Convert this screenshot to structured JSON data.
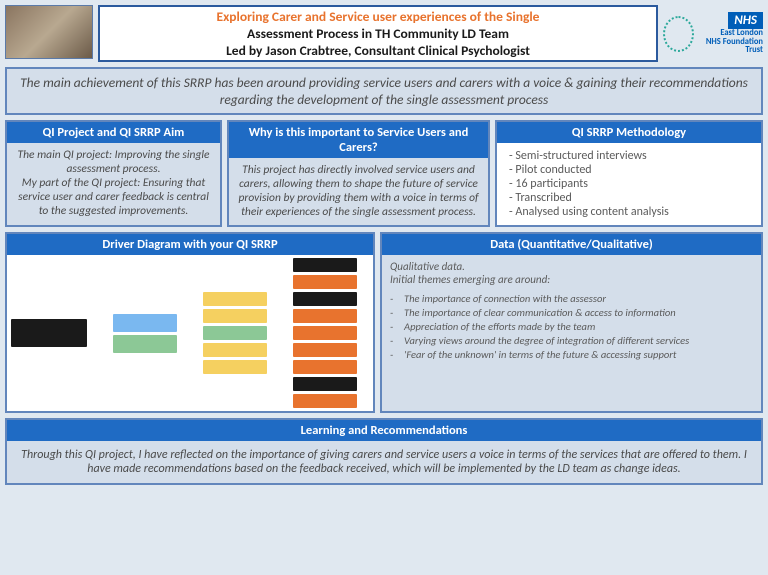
{
  "header": {
    "title_line1": "Exploring Carer and Service user experiences of the Single",
    "title_line2": "Assessment Process in TH Community LD Team",
    "title_line3": "Led by Jason Crabtree, Consultant Clinical Psychologist",
    "title_line1_color": "#e8732e",
    "title_line2_color": "#1a1a1a",
    "nhs_block": "NHS",
    "nhs_trust_line1": "East London",
    "nhs_trust_line2": "NHS Foundation Trust"
  },
  "achievement": "The main achievement of this SRRP has been around providing service users and carers with a voice & gaining their recommendations regarding the development of the single assessment process",
  "aim": {
    "heading": "QI Project and QI SRRP Aim",
    "body": "The main QI project: Improving the single assessment process.\nMy part of the QI project:  Ensuring that service user and carer feedback is central to the  suggested improvements."
  },
  "why": {
    "heading": "Why is this important to Service Users and Carers?",
    "body": "This project has directly involved service users and carers, allowing them to shape the future of service provision by providing them with a voice in terms of their experiences of the single assessment process."
  },
  "methodology": {
    "heading": "QI SRRP Methodology",
    "items": [
      "Semi-structured interviews",
      "Pilot conducted",
      "16 participants",
      "Transcribed",
      "Analysed using content analysis"
    ]
  },
  "driver": {
    "heading": "Driver Diagram with your QI SRRP",
    "aim_node_color": "#1a1a1a",
    "primary_colors": [
      "#7ab8f0",
      "#8cc896"
    ],
    "secondary_colors": [
      "#f5d060",
      "#f5d060",
      "#8cc896",
      "#f5d060",
      "#f5d060"
    ],
    "change_colors": [
      "#1a1a1a",
      "#e8732e",
      "#1a1a1a",
      "#e8732e",
      "#e8732e",
      "#e8732e",
      "#e8732e",
      "#1a1a1a",
      "#e8732e"
    ]
  },
  "data": {
    "heading": "Data (Quantitative/Qualitative)",
    "intro": "Qualitative data.\nInitial themes emerging are around:",
    "themes": [
      "The importance of connection with the assessor",
      "The importance of clear communication & access to information",
      "Appreciation of the efforts made by the team",
      "Varying views around the degree of integration of different services",
      "'Fear of the unknown' in terms of the future & accessing support"
    ]
  },
  "learning": {
    "heading": "Learning and Recommendations",
    "body": "Through this QI project, I have reflected on the importance of giving carers and service users a voice in terms of the services that are offered to them. I have made recommendations based on the feedback received, which will be implemented by the LD team as change ideas."
  },
  "colors": {
    "panel_border": "#6286bc",
    "panel_head_bg": "#1f6bc4",
    "panel_body_bg": "#d4deea",
    "page_bg": "#e0e8f0",
    "nhs_blue": "#005eb8"
  }
}
